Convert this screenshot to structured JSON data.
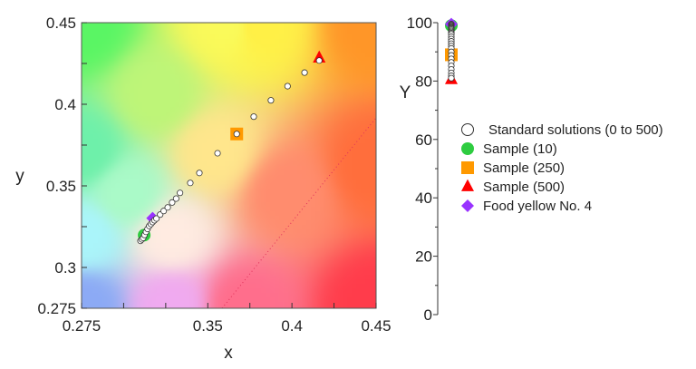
{
  "chart_data": [
    {
      "type": "scatter",
      "xlabel": "x",
      "ylabel": "y",
      "xlim": [
        0.275,
        0.45
      ],
      "ylim": [
        0.275,
        0.45
      ],
      "xtick_labels": [
        "0.275",
        "0.35",
        "0.4",
        "0.45"
      ],
      "xtick_values": [
        0.275,
        0.35,
        0.4,
        0.45
      ],
      "xminor_ticks": [
        0.3,
        0.325,
        0.375,
        0.425
      ],
      "ytick_labels": [
        "0.275",
        "0.3",
        "0.35",
        "0.4",
        "0.45"
      ],
      "ytick_values": [
        0.275,
        0.3,
        0.35,
        0.4,
        0.45
      ],
      "yminor_ticks": [
        0.325,
        0.375,
        0.425
      ],
      "background": "chromaticity color map",
      "grid": false,
      "series": [
        {
          "name": "Standard solutions (0 to 500)",
          "marker": "circle-open",
          "color": "#ffffff",
          "x": [
            0.31,
            0.3108,
            0.3116,
            0.3124,
            0.3133,
            0.3142,
            0.3152,
            0.3162,
            0.3172,
            0.3183,
            0.3195,
            0.3217,
            0.3238,
            0.3262,
            0.3288,
            0.3312,
            0.3335,
            0.3396,
            0.345,
            0.3558,
            0.3672,
            0.3773,
            0.3875,
            0.3974,
            0.4075,
            0.4162
          ],
          "y": [
            0.3163,
            0.3172,
            0.3181,
            0.3199,
            0.3218,
            0.3236,
            0.3254,
            0.3266,
            0.3278,
            0.3289,
            0.33,
            0.3324,
            0.3346,
            0.3368,
            0.3398,
            0.3422,
            0.3457,
            0.3518,
            0.3579,
            0.37,
            0.3818,
            0.3924,
            0.4024,
            0.4111,
            0.4194,
            0.4268
          ]
        },
        {
          "name": "Sample (10)",
          "marker": "circle",
          "color": "#2ecc40",
          "x": [
            0.3122
          ],
          "y": [
            0.3198
          ]
        },
        {
          "name": "Sample (250)",
          "marker": "square",
          "color": "#ff9900",
          "x": [
            0.3672
          ],
          "y": [
            0.3818
          ]
        },
        {
          "name": "Sample (500)",
          "marker": "triangle",
          "color": "#ff0000",
          "x": [
            0.4162
          ],
          "y": [
            0.4283
          ]
        },
        {
          "name": "Food yellow No. 4",
          "marker": "diamond",
          "color": "#9933ff",
          "x": [
            0.3172
          ],
          "y": [
            0.3302
          ]
        }
      ]
    },
    {
      "type": "scatter",
      "ylabel": "Y",
      "ylim": [
        0,
        100
      ],
      "ytick_labels": [
        "0",
        "20",
        "40",
        "60",
        "80",
        "100"
      ],
      "ytick_values": [
        0,
        20,
        40,
        60,
        80,
        100
      ],
      "yminor_ticks": [
        10,
        30,
        50,
        70,
        90
      ],
      "series": [
        {
          "name": "Standard solutions (0 to 500)",
          "marker": "circle-open",
          "color": "#ffffff",
          "values": [
            99.5,
            99.2,
            98.9,
            98.6,
            98.3,
            98.0,
            97.6,
            97.2,
            96.8,
            96.4,
            96.0,
            95.2,
            94.4,
            93.6,
            92.8,
            92.0,
            91.2,
            90.0,
            88.8,
            87.6,
            86.4,
            85.2,
            84.0,
            82.8,
            81.8,
            81.0
          ]
        },
        {
          "name": "Sample (10)",
          "marker": "circle",
          "color": "#2ecc40",
          "values": [
            99.0
          ]
        },
        {
          "name": "Sample (250)",
          "marker": "square",
          "color": "#ff9900",
          "values": [
            89.0
          ]
        },
        {
          "name": "Sample (500)",
          "marker": "triangle",
          "color": "#ff0000",
          "values": [
            80.5
          ]
        },
        {
          "name": "Food yellow No. 4",
          "marker": "diamond",
          "color": "#9933ff",
          "values": [
            99.5
          ]
        }
      ]
    }
  ],
  "legend": {
    "placement": "right",
    "items": [
      {
        "label": "Standard solutions (0 to 500)",
        "marker": "circle-open",
        "color": "#ffffff"
      },
      {
        "label": "Sample (10)",
        "marker": "circle",
        "color": "#2ecc40"
      },
      {
        "label": "Sample (250)",
        "marker": "square",
        "color": "#ff9900"
      },
      {
        "label": "Sample (500)",
        "marker": "triangle",
        "color": "#ff0000"
      },
      {
        "label": "Food yellow No. 4",
        "marker": "diamond",
        "color": "#9933ff"
      }
    ]
  }
}
